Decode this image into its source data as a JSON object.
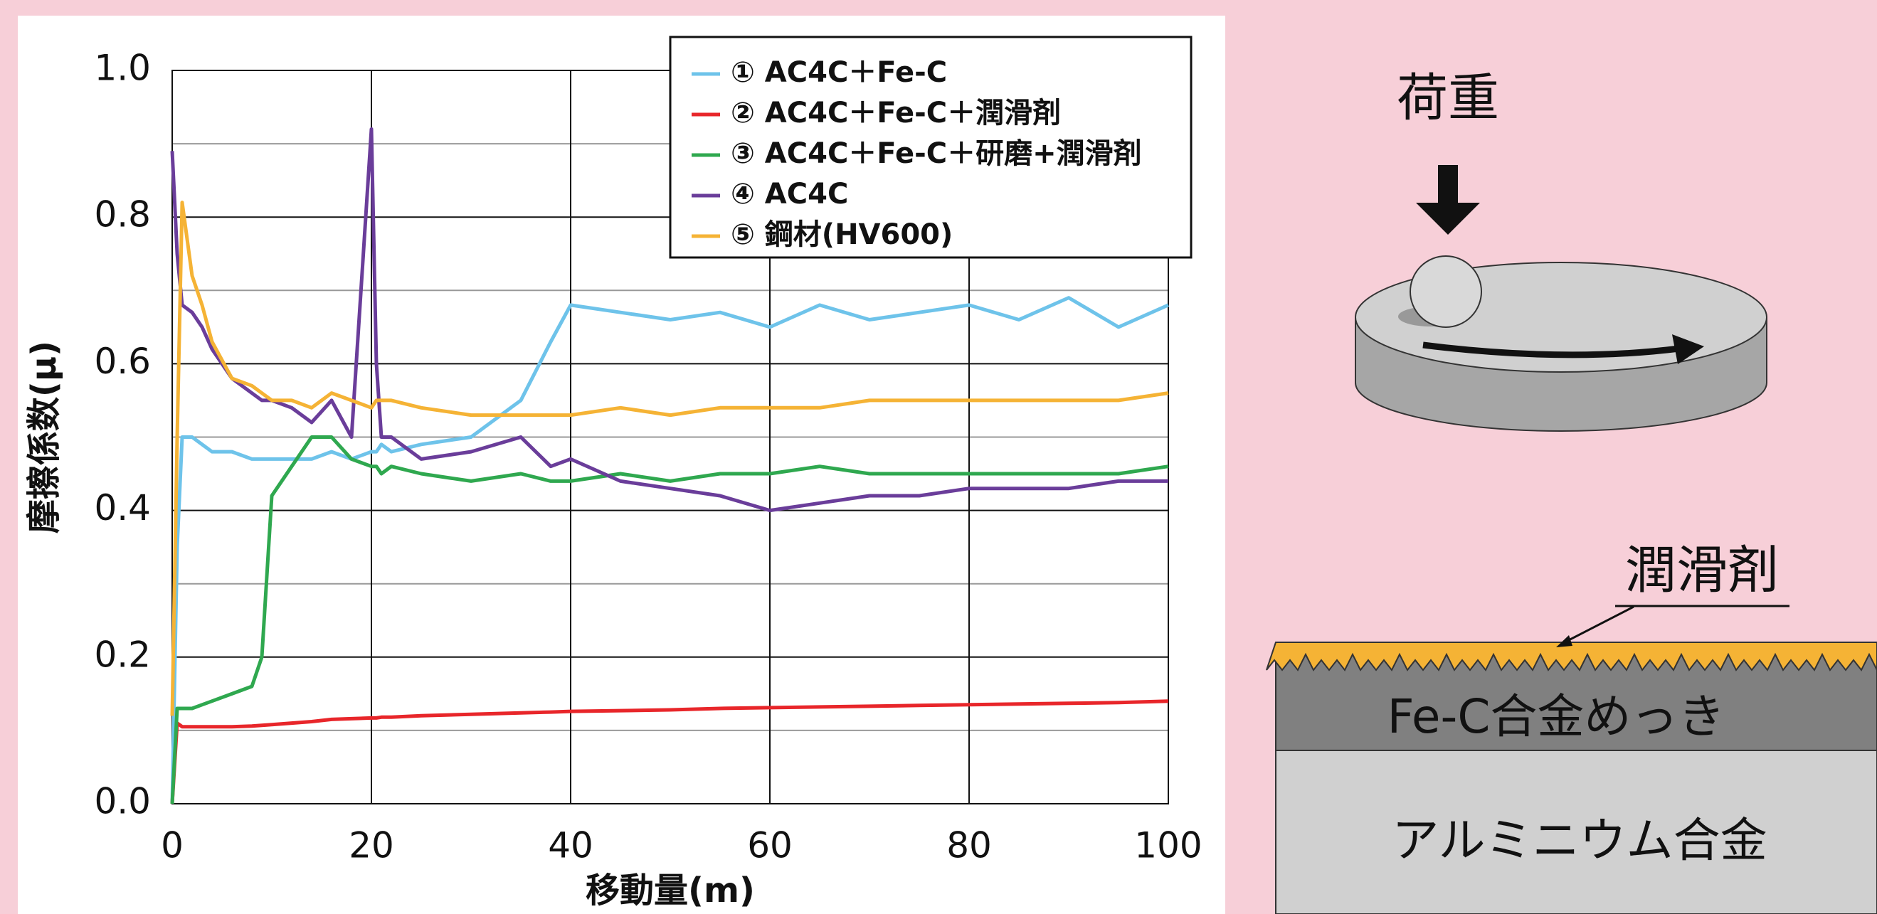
{
  "chart_data": {
    "type": "line",
    "ylabel": "摩擦係数(μ)",
    "xlabel": "移動量(m)",
    "xlim": [
      0,
      100
    ],
    "ylim": [
      0,
      1
    ],
    "xticks": [
      0,
      20,
      40,
      60,
      80,
      100
    ],
    "yticks": [
      {
        "value": 0,
        "label": "0.0"
      },
      0.2,
      0.4,
      0.6,
      0.8,
      {
        "value": 1,
        "label": "1.0"
      }
    ],
    "minor_yticks": [
      0.1,
      0.3,
      0.5,
      0.7,
      0.9
    ],
    "grid": true,
    "legend": "upper right",
    "x": [
      0,
      0.5,
      1,
      2,
      3,
      4,
      6,
      8,
      9,
      10,
      12,
      14,
      16,
      18,
      20,
      20.5,
      21,
      22,
      25,
      30,
      35,
      38,
      40,
      45,
      50,
      55,
      60,
      65,
      70,
      75,
      80,
      85,
      90,
      95,
      100
    ],
    "series": [
      {
        "name": "① AC4C＋Fe-C",
        "color": "#6ec3ea",
        "values": [
          0,
          0.35,
          0.5,
          0.5,
          0.49,
          0.48,
          0.48,
          0.47,
          0.47,
          0.47,
          0.47,
          0.47,
          0.48,
          0.47,
          0.48,
          0.48,
          0.49,
          0.48,
          0.49,
          0.5,
          0.55,
          0.63,
          0.68,
          0.67,
          0.66,
          0.67,
          0.65,
          0.68,
          0.66,
          0.67,
          0.68,
          0.66,
          0.69,
          0.65,
          0.68
        ]
      },
      {
        "name": "② AC4C＋Fe-C＋潤滑剤",
        "color": "#e8262a",
        "values": [
          0,
          0.11,
          0.105,
          0.105,
          0.105,
          0.105,
          0.105,
          0.106,
          0.107,
          0.108,
          0.11,
          0.112,
          0.115,
          0.116,
          0.117,
          0.117,
          0.118,
          0.118,
          0.12,
          0.122,
          0.124,
          0.125,
          0.126,
          0.127,
          0.128,
          0.13,
          0.131,
          0.132,
          0.133,
          0.134,
          0.135,
          0.136,
          0.137,
          0.138,
          0.14
        ]
      },
      {
        "name": "③ AC4C＋Fe-C＋研磨+潤滑剤",
        "color": "#2fa84f",
        "values": [
          0,
          0.13,
          0.13,
          0.13,
          0.135,
          0.14,
          0.15,
          0.16,
          0.2,
          0.42,
          0.46,
          0.5,
          0.5,
          0.47,
          0.46,
          0.46,
          0.45,
          0.46,
          0.45,
          0.44,
          0.45,
          0.44,
          0.44,
          0.45,
          0.44,
          0.45,
          0.45,
          0.46,
          0.45,
          0.45,
          0.45,
          0.45,
          0.45,
          0.45,
          0.46
        ]
      },
      {
        "name": "④ AC4C",
        "color": "#6a3d9a",
        "values": [
          0.89,
          0.75,
          0.68,
          0.67,
          0.65,
          0.62,
          0.58,
          0.56,
          0.55,
          0.55,
          0.54,
          0.52,
          0.55,
          0.5,
          0.92,
          0.6,
          0.5,
          0.5,
          0.47,
          0.48,
          0.5,
          0.46,
          0.47,
          0.44,
          0.43,
          0.42,
          0.4,
          0.41,
          0.42,
          0.42,
          0.43,
          0.43,
          0.43,
          0.44,
          0.44
        ]
      },
      {
        "name": "⑤ 鋼材(HV600)",
        "color": "#f5b335",
        "values": [
          0.12,
          0.5,
          0.82,
          0.72,
          0.68,
          0.63,
          0.58,
          0.57,
          0.56,
          0.55,
          0.55,
          0.54,
          0.56,
          0.55,
          0.54,
          0.55,
          0.55,
          0.55,
          0.54,
          0.53,
          0.53,
          0.53,
          0.53,
          0.54,
          0.53,
          0.54,
          0.54,
          0.54,
          0.55,
          0.55,
          0.55,
          0.55,
          0.55,
          0.55,
          0.56
        ]
      }
    ]
  },
  "diagram": {
    "load": "荷重",
    "lubricant": "潤滑剤",
    "plating": "Fe-C合金めっき",
    "base": "アルミニウム合金"
  }
}
